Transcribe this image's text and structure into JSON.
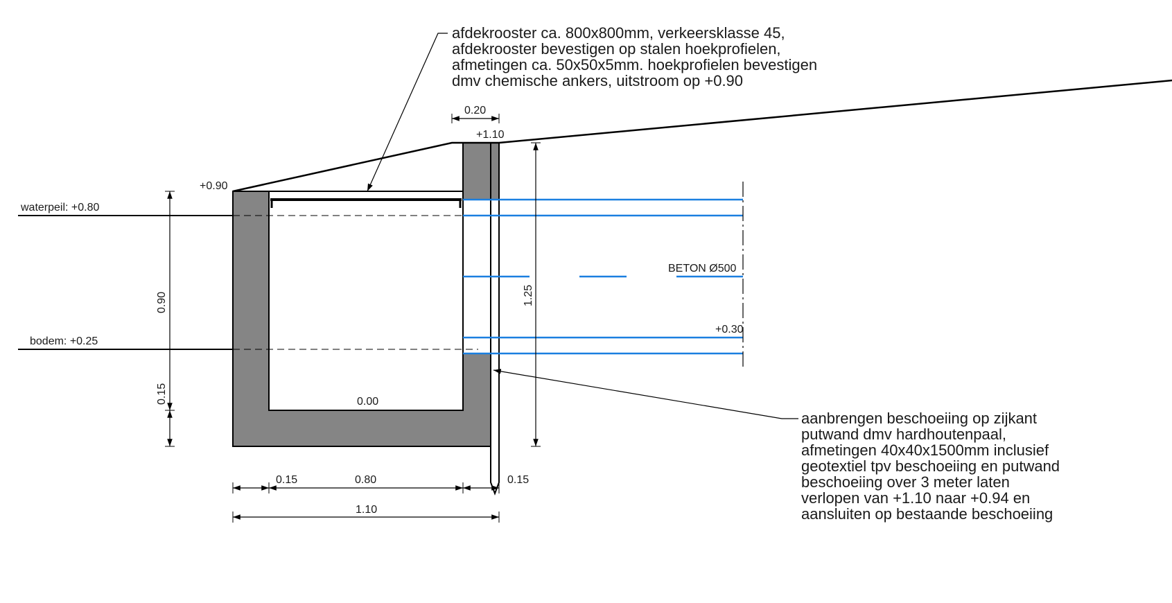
{
  "annotations": {
    "top_note": [
      "afdekrooster ca. 800x800mm, verkeersklasse 45,",
      "afdekrooster bevestigen op stalen hoekprofielen,",
      "afmetingen ca. 50x50x5mm. hoekprofielen bevestigen",
      "dmv chemische ankers, uitstroom op +0.90"
    ],
    "side_note": [
      "aanbrengen beschoeiing op zijkant",
      "putwand dmv hardhoutenpaal,",
      "afmetingen 40x40x1500mm inclusief",
      "geotextiel tpv beschoeiing en putwand",
      "beschoeiing over 3 meter laten",
      "verlopen van +1.10 naar +0.94 en",
      "aansluiten op bestaande beschoeiing"
    ]
  },
  "levels": {
    "waterpeil": "waterpeil: +0.80",
    "bodem": "bodem: +0.25",
    "left_top": "+0.90",
    "right_top": "+1.10",
    "floor": "0.00",
    "pipe_invert": "+0.30"
  },
  "pipe_label": "BETON Ø500",
  "dimensions": {
    "top_width": "0.20",
    "height_090": "0.90",
    "height_015": "0.15",
    "height_125": "1.25",
    "bottom_left_wall": "0.15",
    "bottom_inner": "0.80",
    "bottom_right_wall": "0.15",
    "bottom_total": "1.10"
  },
  "colors": {
    "concrete": "#858585",
    "pipe": "#1a7fe0",
    "line": "#000000"
  }
}
